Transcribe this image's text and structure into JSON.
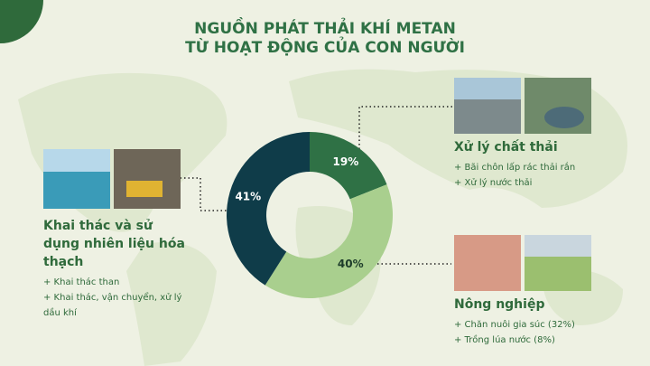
{
  "chart_data": {
    "type": "donut",
    "title": [
      "NGUỒN PHÁT THẢI KHÍ METAN",
      "TỪ HOẠT ĐỘNG CỦA CON NGƯỜI"
    ],
    "categories": [
      "Xử lý chất thải",
      "Nông nghiệp",
      "Khai thác và sử dụng nhiên liệu hóa thạch"
    ],
    "values": [
      19,
      40,
      41
    ],
    "value_labels": [
      "19%",
      "40%",
      "41%"
    ],
    "colors": [
      "#2f7145",
      "#a9cf8e",
      "#0f3c49"
    ],
    "details": [
      [
        "+ Bãi chôn lấp rác thải rắn",
        "+ Xử lý nước thải"
      ],
      [
        "+ Chăn nuôi gia súc (32%)",
        "+ Trồng lúa nước (8%)"
      ],
      [
        "+ Khai thác than",
        "+ Khai thác, vận chuyển, xử lý dầu khí"
      ]
    ]
  }
}
